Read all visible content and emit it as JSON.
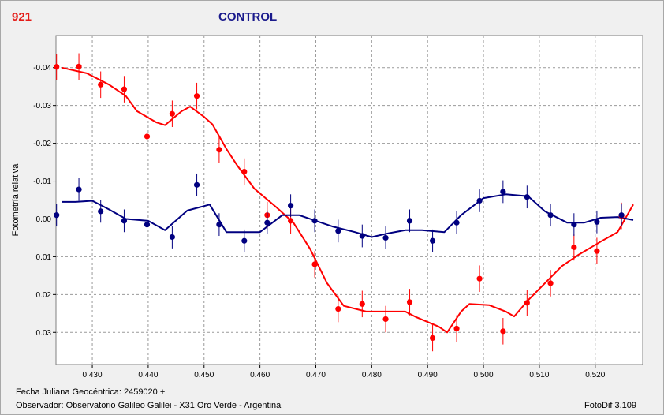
{
  "header": {
    "object_id": "921",
    "title": "CONTROL"
  },
  "footer": {
    "julian_date": "Fecha Juliana Geocéntrica: 2459020 +",
    "observer": "Observador: Observatorio Galileo Galilei - X31 Oro Verde - Argentina",
    "software": "FotoDif 3.109"
  },
  "chart_data": {
    "type": "scatter",
    "title": "CONTROL",
    "ylabel": "Fotometría relativa",
    "xlabel": "",
    "xlim": [
      0.4235,
      0.5285
    ],
    "ylim": [
      0.0385,
      -0.0485
    ],
    "y_inverted": true,
    "grid": true,
    "x_ticks": [
      {
        "v": 0.43,
        "label": "0.430"
      },
      {
        "v": 0.44,
        "label": "0.440"
      },
      {
        "v": 0.45,
        "label": "0.450"
      },
      {
        "v": 0.46,
        "label": "0.460"
      },
      {
        "v": 0.47,
        "label": "0.470"
      },
      {
        "v": 0.48,
        "label": "0.480"
      },
      {
        "v": 0.49,
        "label": "0.490"
      },
      {
        "v": 0.5,
        "label": "0.500"
      },
      {
        "v": 0.51,
        "label": "0.510"
      },
      {
        "v": 0.52,
        "label": "0.520"
      }
    ],
    "y_ticks": [
      {
        "v": -0.04,
        "label": "-0.04"
      },
      {
        "v": -0.03,
        "label": "-0.03"
      },
      {
        "v": -0.02,
        "label": "-0.02"
      },
      {
        "v": -0.01,
        "label": "-0.01"
      },
      {
        "v": 0.0,
        "label": "0.00"
      },
      {
        "v": 0.01,
        "label": "0.01"
      },
      {
        "v": 0.02,
        "label": "0.02"
      },
      {
        "v": 0.03,
        "label": "0.03"
      }
    ],
    "series": [
      {
        "color": "#ff0000",
        "error": 0.0035,
        "points": [
          [
            0.4236,
            -0.0402
          ],
          [
            0.4276,
            -0.0403
          ],
          [
            0.4315,
            -0.0355
          ],
          [
            0.4357,
            -0.0343
          ],
          [
            0.4398,
            -0.0218
          ],
          [
            0.4443,
            -0.0278
          ],
          [
            0.4487,
            -0.0325
          ],
          [
            0.4527,
            -0.0183
          ],
          [
            0.4572,
            -0.0125
          ],
          [
            0.4613,
            -0.001
          ],
          [
            0.4655,
            0.0005
          ],
          [
            0.4698,
            0.012
          ],
          [
            0.474,
            0.0238
          ],
          [
            0.4783,
            0.0225
          ],
          [
            0.4825,
            0.0265
          ],
          [
            0.4868,
            0.022
          ],
          [
            0.4909,
            0.0315
          ],
          [
            0.4952,
            0.029
          ],
          [
            0.4993,
            0.0158
          ],
          [
            0.5035,
            0.0297
          ],
          [
            0.5078,
            0.0222
          ],
          [
            0.512,
            0.017
          ],
          [
            0.5162,
            0.0075
          ],
          [
            0.5203,
            0.0085
          ],
          [
            0.5247,
            -0.0008
          ],
          [
            0.5287,
            -0.007
          ]
        ],
        "fit": [
          [
            0.4245,
            -0.04
          ],
          [
            0.429,
            -0.0385
          ],
          [
            0.433,
            -0.0355
          ],
          [
            0.436,
            -0.0325
          ],
          [
            0.438,
            -0.0285
          ],
          [
            0.4415,
            -0.0255
          ],
          [
            0.443,
            -0.0248
          ],
          [
            0.446,
            -0.0285
          ],
          [
            0.4475,
            -0.0297
          ],
          [
            0.45,
            -0.027
          ],
          [
            0.4515,
            -0.025
          ],
          [
            0.454,
            -0.0185
          ],
          [
            0.456,
            -0.014
          ],
          [
            0.459,
            -0.008
          ],
          [
            0.463,
            -0.003
          ],
          [
            0.466,
            0.001
          ],
          [
            0.469,
            0.008
          ],
          [
            0.472,
            0.017
          ],
          [
            0.475,
            0.023
          ],
          [
            0.479,
            0.0245
          ],
          [
            0.483,
            0.0245
          ],
          [
            0.486,
            0.0245
          ],
          [
            0.488,
            0.026
          ],
          [
            0.492,
            0.0285
          ],
          [
            0.4935,
            0.03
          ],
          [
            0.496,
            0.0245
          ],
          [
            0.4975,
            0.0225
          ],
          [
            0.501,
            0.0228
          ],
          [
            0.504,
            0.0245
          ],
          [
            0.5055,
            0.0258
          ],
          [
            0.508,
            0.0215
          ],
          [
            0.511,
            0.017
          ],
          [
            0.514,
            0.0125
          ],
          [
            0.517,
            0.0095
          ],
          [
            0.521,
            0.006
          ],
          [
            0.524,
            0.0035
          ],
          [
            0.5268,
            -0.0038
          ]
        ]
      },
      {
        "color": "#000080",
        "error": 0.003,
        "points": [
          [
            0.4236,
            -0.001
          ],
          [
            0.4276,
            -0.0078
          ],
          [
            0.4315,
            -0.002
          ],
          [
            0.4357,
            0.0005
          ],
          [
            0.4398,
            0.0015
          ],
          [
            0.4443,
            0.0048
          ],
          [
            0.4487,
            -0.009
          ],
          [
            0.4527,
            0.0015
          ],
          [
            0.4572,
            0.0058
          ],
          [
            0.4613,
            0.001
          ],
          [
            0.4655,
            -0.0035
          ],
          [
            0.4698,
            0.0005
          ],
          [
            0.474,
            0.0032
          ],
          [
            0.4783,
            0.0045
          ],
          [
            0.4825,
            0.005
          ],
          [
            0.4868,
            0.0005
          ],
          [
            0.4909,
            0.0058
          ],
          [
            0.4952,
            0.001
          ],
          [
            0.4993,
            -0.0048
          ],
          [
            0.5035,
            -0.0072
          ],
          [
            0.5078,
            -0.0058
          ],
          [
            0.512,
            -0.001
          ],
          [
            0.5162,
            0.0015
          ],
          [
            0.5203,
            0.0008
          ],
          [
            0.5247,
            -0.001
          ],
          [
            0.5287,
            0.0018
          ]
        ],
        "fit": [
          [
            0.4245,
            -0.0045
          ],
          [
            0.427,
            -0.0045
          ],
          [
            0.43,
            -0.0048
          ],
          [
            0.433,
            -0.0025
          ],
          [
            0.436,
            0.0
          ],
          [
            0.44,
            0.0005
          ],
          [
            0.443,
            0.003
          ],
          [
            0.447,
            -0.0022
          ],
          [
            0.451,
            -0.0038
          ],
          [
            0.454,
            0.0035
          ],
          [
            0.457,
            0.0035
          ],
          [
            0.46,
            0.0035
          ],
          [
            0.464,
            -0.001
          ],
          [
            0.467,
            -0.001
          ],
          [
            0.47,
            0.0005
          ],
          [
            0.473,
            0.002
          ],
          [
            0.477,
            0.0035
          ],
          [
            0.48,
            0.0048
          ],
          [
            0.483,
            0.0038
          ],
          [
            0.486,
            0.003
          ],
          [
            0.489,
            0.003
          ],
          [
            0.493,
            0.0035
          ],
          [
            0.496,
            -0.001
          ],
          [
            0.5,
            -0.0055
          ],
          [
            0.504,
            -0.0065
          ],
          [
            0.508,
            -0.006
          ],
          [
            0.511,
            -0.002
          ],
          [
            0.515,
            0.001
          ],
          [
            0.518,
            0.001
          ],
          [
            0.521,
            -0.0003
          ],
          [
            0.524,
            -0.0005
          ],
          [
            0.5268,
            0.0003
          ]
        ]
      }
    ]
  }
}
